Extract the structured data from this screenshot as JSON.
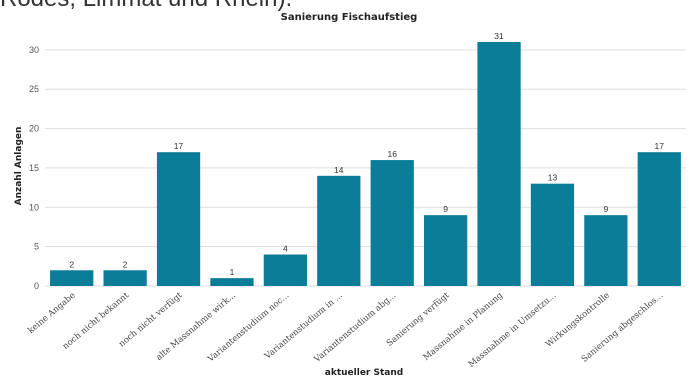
{
  "cropped_heading": "Rodes, Limmat und Rhein).",
  "chart_data": {
    "type": "bar",
    "title": "Sanierung Fischaufstieg",
    "xlabel": "aktueller Stand",
    "ylabel": "Anzahl Anlagen",
    "categories": [
      "keine Angabe",
      "noch nicht bekannt",
      "noch nicht verfügt",
      "alte Massnahme wirk...",
      "Variantenstudium noc...",
      "Variantenstudium in ...",
      "Variantenstudium abg...",
      "Sanierung verfügt",
      "Massnahme in Planung",
      "Massnahme in Umsetzu...",
      "Wirkungskontrolle",
      "Sanierung abgeschlos..."
    ],
    "values": [
      2,
      2,
      17,
      1,
      4,
      14,
      16,
      9,
      31,
      13,
      9,
      17
    ],
    "ylim": [
      0,
      31
    ],
    "yticks": [
      0,
      5,
      10,
      15,
      20,
      25,
      30
    ],
    "grid": true,
    "bar_color": "#0b7d99",
    "grid_color": "#dddddd"
  }
}
